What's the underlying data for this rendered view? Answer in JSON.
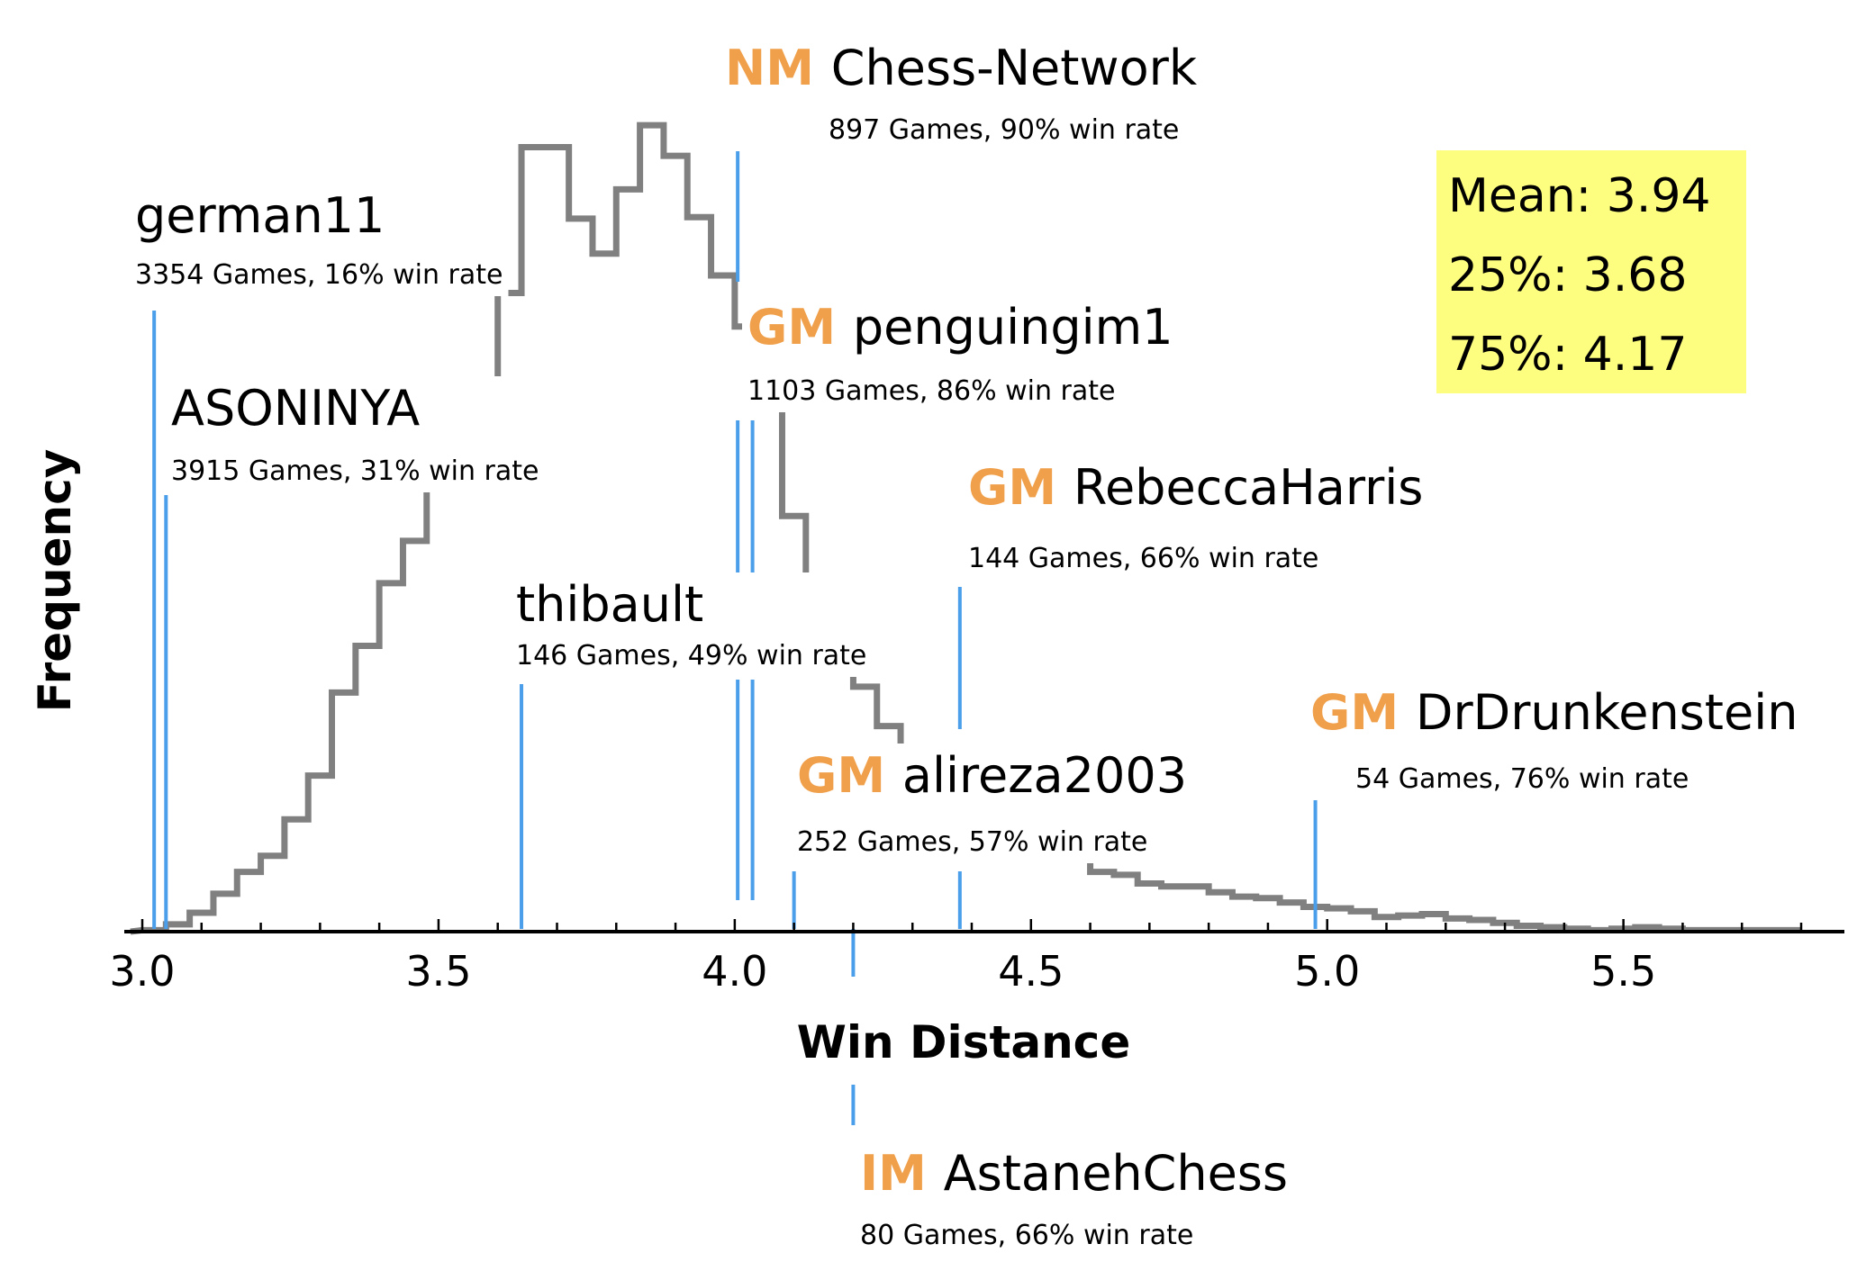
{
  "chart_data": {
    "type": "histogram",
    "xlabel": "Win Distance",
    "ylabel": "Frequency",
    "xlim": [
      3.0,
      5.8
    ],
    "xticks": [
      "3.0",
      "3.5",
      "4.0",
      "4.5",
      "5.0",
      "5.5"
    ],
    "histogram": {
      "bin_width": 0.04,
      "bin_start": 3.0,
      "frequency": [
        1,
        5,
        13,
        26,
        41,
        52,
        77,
        107,
        164,
        196,
        239,
        268,
        310,
        335,
        343,
        438,
        538,
        538,
        489,
        465,
        509,
        553,
        532,
        490,
        450,
        415,
        372,
        285,
        213,
        183,
        168,
        141,
        115,
        84,
        75,
        67,
        61,
        54,
        54,
        50,
        41,
        39,
        33,
        31,
        31,
        27,
        24,
        23,
        20,
        17,
        16,
        14,
        10,
        11,
        12,
        9,
        8,
        6,
        4,
        3,
        2,
        1,
        2,
        3,
        2,
        1,
        1,
        1,
        1,
        1
      ]
    },
    "stats": {
      "mean": "Mean: 3.94",
      "q25": "25%: 3.68",
      "q75": "75%: 4.17"
    },
    "players": [
      {
        "title": "",
        "name": "german11",
        "stats": "3354 Games, 16% win rate",
        "x": 3.02
      },
      {
        "title": "",
        "name": "ASONINYA",
        "stats": "3915 Games, 31% win rate",
        "x": 3.04
      },
      {
        "title": "",
        "name": "thibault",
        "stats": "146 Games, 49% win rate",
        "x": 3.64
      },
      {
        "title": "NM",
        "name": "Chess-Network",
        "stats": "897 Games, 90% win rate",
        "x": 4.005
      },
      {
        "title": "GM",
        "name": "penguingim1",
        "stats": "1103 Games, 86% win rate",
        "x": 4.03
      },
      {
        "title": "GM",
        "name": "alireza2003",
        "stats": "252 Games, 57% win rate",
        "x": 4.1
      },
      {
        "title": "IM",
        "name": "AstanehChess",
        "stats": "80 Games, 66% win rate",
        "x": 4.2
      },
      {
        "title": "GM",
        "name": "RebeccaHarris",
        "stats": "144 Games, 66% win rate",
        "x": 4.38
      },
      {
        "title": "GM",
        "name": "DrDrunkenstein",
        "stats": "54 Games, 76% win rate",
        "x": 4.98
      }
    ],
    "colors": {
      "histogram": "#808080",
      "marker": "#4a9eea",
      "title": "#f0a04b",
      "stats_box": "#fdfd80"
    }
  }
}
